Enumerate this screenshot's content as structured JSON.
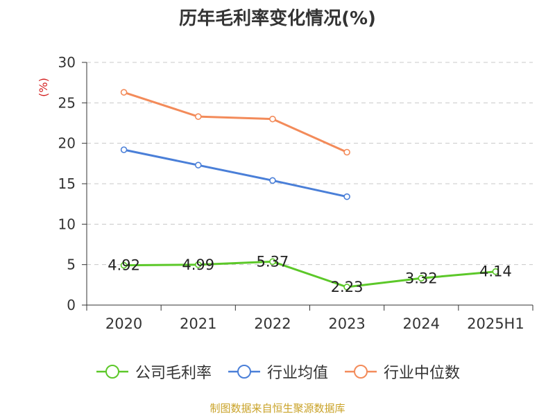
{
  "title": "历年毛利率变化情况(%)",
  "source": "制图数据来自恒生聚源数据库",
  "chart_data": {
    "type": "line",
    "title": "历年毛利率变化情况(%)",
    "ylabel": "(%)",
    "ylim": [
      0,
      30
    ],
    "yticks": [
      0,
      5,
      10,
      15,
      20,
      25,
      30
    ],
    "categories": [
      "2020",
      "2021",
      "2022",
      "2023",
      "2024",
      "2025H1"
    ],
    "grid": true,
    "legend_position": "bottom",
    "series": [
      {
        "name": "公司毛利率",
        "color": "#5cc829",
        "values": [
          4.92,
          4.99,
          5.37,
          2.23,
          3.32,
          4.14
        ],
        "labels": [
          "4.92",
          "4.99",
          "5.37",
          "2.23",
          "3.32",
          "4.14"
        ]
      },
      {
        "name": "行业均值",
        "color": "#4a7fd8",
        "values": [
          19.2,
          17.3,
          15.4,
          13.4,
          null,
          null
        ]
      },
      {
        "name": "行业中位数",
        "color": "#f38b5a",
        "values": [
          26.3,
          23.3,
          23.0,
          18.9,
          null,
          null
        ]
      }
    ]
  }
}
